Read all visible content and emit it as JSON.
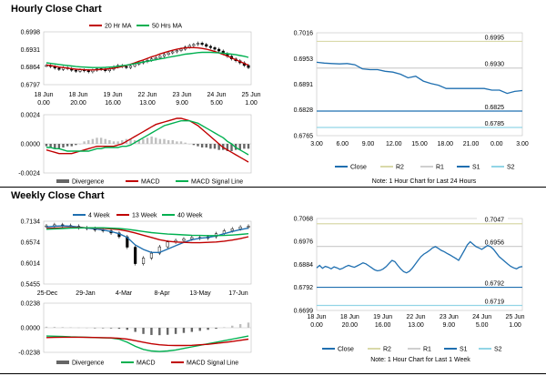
{
  "sections": {
    "hourly_title": "Hourly Close Chart",
    "weekly_title": "Weekly Close Chart"
  },
  "colors": {
    "ma_red": "#c00000",
    "ma_green": "#00b050",
    "series_blue": "#1f6fb0",
    "r2_line": "#d9d9a9",
    "r1_line": "#cfcfcf",
    "s2_line": "#92d5e6",
    "hist_grey": "#666666",
    "hist_light": "#bfbfbf"
  },
  "chart_data": [
    {
      "id": "hourly-candle",
      "type": "candlestick",
      "legend": [
        "20 Hr MA",
        "50 Hrs MA"
      ],
      "y_ticks": [
        "0.6998",
        "0.6931",
        "0.6864",
        "0.6797"
      ],
      "ylim": [
        0.6797,
        0.6998
      ],
      "x_ticks": [
        [
          "18 Jun",
          "0.00"
        ],
        [
          "18 Jun",
          "20.00"
        ],
        [
          "19 Jun",
          "16.00"
        ],
        [
          "22 Jun",
          "13.00"
        ],
        [
          "23 Jun",
          "9.00"
        ],
        [
          "24 Jun",
          "5.00"
        ],
        [
          "25 Jun",
          "1.00"
        ]
      ],
      "closes": [
        0.687,
        0.6866,
        0.686,
        0.6855,
        0.6862,
        0.6858,
        0.6852,
        0.6848,
        0.6853,
        0.685,
        0.6846,
        0.6852,
        0.6858,
        0.6855,
        0.685,
        0.6856,
        0.6865,
        0.687,
        0.6866,
        0.6862,
        0.6868,
        0.6875,
        0.688,
        0.6885,
        0.689,
        0.6895,
        0.69,
        0.6905,
        0.6912,
        0.6918,
        0.6922,
        0.6927,
        0.6932,
        0.694,
        0.6946,
        0.695,
        0.6955,
        0.695,
        0.6943,
        0.6938,
        0.6932,
        0.6925,
        0.6915,
        0.6905,
        0.6895,
        0.6888,
        0.688,
        0.687,
        0.6862
      ],
      "ma20": [
        0.6872,
        0.687,
        0.6867,
        0.6864,
        0.6862,
        0.686,
        0.6858,
        0.6856,
        0.6855,
        0.6854,
        0.6853,
        0.6853,
        0.6854,
        0.6855,
        0.6856,
        0.6858,
        0.686,
        0.6863,
        0.6866,
        0.687,
        0.6875,
        0.688,
        0.6886,
        0.6891,
        0.6897,
        0.6903,
        0.6908,
        0.6914,
        0.6919,
        0.6924,
        0.6928,
        0.6932,
        0.6935,
        0.6937,
        0.6938,
        0.6938,
        0.6937,
        0.6935,
        0.6932,
        0.6928,
        0.6923,
        0.6918,
        0.6912,
        0.6906,
        0.6899,
        0.6892,
        0.6885,
        0.6878,
        0.6871
      ],
      "ma50": [
        0.688,
        0.6878,
        0.6876,
        0.6874,
        0.6872,
        0.687,
        0.6868,
        0.6866,
        0.6865,
        0.6864,
        0.6863,
        0.6862,
        0.6862,
        0.6862,
        0.6863,
        0.6864,
        0.6865,
        0.6867,
        0.6869,
        0.6871,
        0.6874,
        0.6877,
        0.688,
        0.6883,
        0.6886,
        0.6889,
        0.6892,
        0.6895,
        0.6898,
        0.6901,
        0.6904,
        0.6907,
        0.691,
        0.6913,
        0.6915,
        0.6917,
        0.6919,
        0.692,
        0.692,
        0.692,
        0.6919,
        0.6918,
        0.6917,
        0.6915,
        0.6913,
        0.6911,
        0.6908,
        0.6905,
        0.6901
      ]
    },
    {
      "id": "hourly-macd",
      "type": "bar",
      "legend": [
        "Divergence",
        "MACD",
        "MACD Signal Line"
      ],
      "y_ticks": [
        "0.0024",
        "0.0000",
        "-0.0024"
      ],
      "ylim": [
        -0.0024,
        0.0024
      ],
      "divergence": [
        -0.0002,
        -0.0003,
        -0.0004,
        -0.0004,
        -0.0003,
        -0.0002,
        -0.0002,
        -0.0001,
        0.0,
        0.0002,
        0.0003,
        0.0004,
        0.0005,
        0.0005,
        0.0004,
        0.0003,
        0.0002,
        0.0002,
        0.0003,
        0.0004,
        0.0004,
        0.0003,
        0.0003,
        0.0004,
        0.0005,
        0.0006,
        0.0005,
        0.0004,
        0.0004,
        0.0003,
        0.0003,
        0.0002,
        0.0002,
        0.0001,
        0.0,
        -0.0001,
        -0.0002,
        -0.0003,
        -0.0003,
        -0.0004,
        -0.0004,
        -0.0005,
        -0.0005,
        -0.0006,
        -0.0006,
        -0.0005,
        -0.0005,
        -0.0004,
        -0.0004
      ],
      "macd": [
        -0.0005,
        -0.0006,
        -0.0007,
        -0.0008,
        -0.0008,
        -0.0008,
        -0.0008,
        -0.0007,
        -0.0006,
        -0.0005,
        -0.0004,
        -0.0003,
        -0.0002,
        -0.0002,
        -0.0002,
        -0.0002,
        -0.0002,
        -0.0001,
        0.0,
        0.0002,
        0.0004,
        0.0006,
        0.0008,
        0.001,
        0.0012,
        0.0014,
        0.0016,
        0.0017,
        0.0018,
        0.0019,
        0.002,
        0.0021,
        0.0021,
        0.002,
        0.0019,
        0.0017,
        0.0015,
        0.0012,
        0.0009,
        0.0006,
        0.0003,
        0.0,
        -0.0003,
        -0.0005,
        -0.0007,
        -0.0009,
        -0.0011,
        -0.0013,
        -0.0015
      ],
      "signal": [
        -0.0003,
        -0.0003,
        -0.0004,
        -0.0004,
        -0.0005,
        -0.0006,
        -0.0006,
        -0.0006,
        -0.0006,
        -0.0006,
        -0.0006,
        -0.0005,
        -0.0004,
        -0.0004,
        -0.0003,
        -0.0003,
        -0.0003,
        -0.0003,
        -0.0002,
        -0.0002,
        -0.0001,
        0.0001,
        0.0003,
        0.0005,
        0.0007,
        0.0009,
        0.0011,
        0.0013,
        0.0015,
        0.0016,
        0.0017,
        0.0018,
        0.0019,
        0.0019,
        0.0019,
        0.0018,
        0.0017,
        0.0015,
        0.0013,
        0.0011,
        0.0009,
        0.0007,
        0.0005,
        0.0002,
        0.0,
        -0.0003,
        -0.0005,
        -0.0007,
        -0.0009
      ]
    },
    {
      "id": "hourly-line",
      "type": "line",
      "legend": [
        "Close",
        "R2",
        "R1",
        "S1",
        "S2"
      ],
      "y_ticks": [
        "0.7016",
        "0.6953",
        "0.6891",
        "0.6828",
        "0.6765"
      ],
      "ylim": [
        0.6765,
        0.7016
      ],
      "x_ticks": [
        "3.00",
        "6.00",
        "9.00",
        "12.00",
        "15.00",
        "18.00",
        "21.00",
        "0.00",
        "3.00"
      ],
      "close": [
        0.6944,
        0.6942,
        0.6941,
        0.694,
        0.6941,
        0.6938,
        0.6928,
        0.6926,
        0.6926,
        0.6922,
        0.692,
        0.6915,
        0.6906,
        0.691,
        0.6898,
        0.6892,
        0.6888,
        0.688,
        0.688,
        0.688,
        0.688,
        0.688,
        0.688,
        0.6876,
        0.6876,
        0.6868,
        0.6873,
        0.6875
      ],
      "levels": [
        {
          "name": "R2",
          "value": 0.6995,
          "label": "0.6995"
        },
        {
          "name": "R1",
          "value": 0.693,
          "label": "0.6930"
        },
        {
          "name": "S1",
          "value": 0.6825,
          "label": "0.6825"
        },
        {
          "name": "S2",
          "value": 0.6785,
          "label": "0.6785"
        }
      ],
      "note": "Note: 1 Hour Chart for Last 24 Hours"
    },
    {
      "id": "weekly-candle",
      "type": "candlestick",
      "legend": [
        "4 Week",
        "13 Week",
        "40 Week"
      ],
      "y_ticks": [
        "0.7134",
        "0.6574",
        "0.6014",
        "0.5455"
      ],
      "ylim": [
        0.5455,
        0.7134
      ],
      "x_ticks": [
        "25-Dec",
        "29-Jan",
        "4-Mar",
        "8-Apr",
        "13-May",
        "17-Jun"
      ],
      "closes": [
        0.701,
        0.704,
        0.702,
        0.7,
        0.696,
        0.694,
        0.69,
        0.688,
        0.682,
        0.672,
        0.644,
        0.6,
        0.615,
        0.628,
        0.645,
        0.658,
        0.662,
        0.666,
        0.67,
        0.668,
        0.672,
        0.68,
        0.688,
        0.693,
        0.698,
        0.7
      ],
      "wk4": [
        0.698,
        0.7,
        0.701,
        0.7,
        0.698,
        0.695,
        0.693,
        0.69,
        0.686,
        0.68,
        0.67,
        0.65,
        0.638,
        0.63,
        0.63,
        0.639,
        0.648,
        0.657,
        0.664,
        0.668,
        0.67,
        0.674,
        0.68,
        0.686,
        0.691,
        0.695
      ],
      "wk13": [
        0.694,
        0.695,
        0.696,
        0.6965,
        0.6965,
        0.696,
        0.6955,
        0.6945,
        0.693,
        0.691,
        0.687,
        0.682,
        0.676,
        0.67,
        0.664,
        0.66,
        0.658,
        0.657,
        0.656,
        0.656,
        0.657,
        0.658,
        0.66,
        0.663,
        0.667,
        0.672
      ],
      "wk40": [
        0.692,
        0.693,
        0.694,
        0.695,
        0.6955,
        0.696,
        0.696,
        0.6958,
        0.695,
        0.694,
        0.692,
        0.689,
        0.686,
        0.683,
        0.681,
        0.679,
        0.678,
        0.677,
        0.676,
        0.6755,
        0.675,
        0.675,
        0.6755,
        0.6765,
        0.678,
        0.68
      ]
    },
    {
      "id": "weekly-macd",
      "type": "bar",
      "legend": [
        "Divergence",
        "MACD",
        "MACD Signal Line"
      ],
      "y_ticks": [
        "0.0238",
        "0.0000",
        "-0.0238"
      ],
      "ylim": [
        -0.0238,
        0.0238
      ],
      "divergence": [
        0.001,
        0.0008,
        0.0006,
        0.0004,
        0.0002,
        0.0,
        -0.0002,
        -0.0004,
        -0.0006,
        -0.001,
        -0.002,
        -0.004,
        -0.006,
        -0.007,
        -0.0072,
        -0.0068,
        -0.006,
        -0.005,
        -0.004,
        -0.003,
        -0.002,
        -0.001,
        0.0005,
        0.002,
        0.0035,
        0.005
      ],
      "macd": [
        -0.008,
        -0.0082,
        -0.0085,
        -0.0088,
        -0.009,
        -0.0092,
        -0.0095,
        -0.0098,
        -0.01,
        -0.011,
        -0.014,
        -0.018,
        -0.021,
        -0.0225,
        -0.023,
        -0.0225,
        -0.0215,
        -0.02,
        -0.0185,
        -0.017,
        -0.0155,
        -0.014,
        -0.0125,
        -0.011,
        -0.0095,
        -0.008
      ],
      "signal": [
        -0.0095,
        -0.0093,
        -0.0092,
        -0.0092,
        -0.0092,
        -0.0093,
        -0.0094,
        -0.0096,
        -0.0098,
        -0.0102,
        -0.011,
        -0.0125,
        -0.014,
        -0.0155,
        -0.0165,
        -0.017,
        -0.0172,
        -0.0172,
        -0.017,
        -0.0165,
        -0.016,
        -0.0152,
        -0.0143,
        -0.0133,
        -0.0122,
        -0.011
      ]
    },
    {
      "id": "weekly-line",
      "type": "line",
      "legend": [
        "Close",
        "R2",
        "R1",
        "S1",
        "S2"
      ],
      "y_ticks": [
        "0.7068",
        "0.6976",
        "0.6884",
        "0.6792",
        "0.6699"
      ],
      "ylim": [
        0.6699,
        0.7068
      ],
      "x_ticks": [
        [
          "18 Jun",
          "0.00"
        ],
        [
          "18 Jun",
          "20.00"
        ],
        [
          "19 Jun",
          "16.00"
        ],
        [
          "22 Jun",
          "13.00"
        ],
        [
          "23 Jun",
          "9.00"
        ],
        [
          "24 Jun",
          "5.00"
        ],
        [
          "25 Jun",
          "1.00"
        ]
      ],
      "close": [
        0.687,
        0.688,
        0.6868,
        0.6876,
        0.6872,
        0.6866,
        0.6874,
        0.687,
        0.6864,
        0.6868,
        0.6875,
        0.688,
        0.6876,
        0.6872,
        0.6878,
        0.6884,
        0.689,
        0.6886,
        0.6878,
        0.687,
        0.6862,
        0.6858,
        0.686,
        0.6866,
        0.6875,
        0.6888,
        0.69,
        0.6895,
        0.688,
        0.6866,
        0.6855,
        0.685,
        0.6856,
        0.6868,
        0.6884,
        0.69,
        0.6915,
        0.6925,
        0.6932,
        0.694,
        0.695,
        0.6955,
        0.6948,
        0.694,
        0.6935,
        0.6928,
        0.6922,
        0.6915,
        0.6908,
        0.69,
        0.692,
        0.694,
        0.6962,
        0.6975,
        0.6965,
        0.6955,
        0.695,
        0.6944,
        0.6952,
        0.696,
        0.6955,
        0.6945,
        0.693,
        0.6915,
        0.6905,
        0.6895,
        0.6885,
        0.6876,
        0.687,
        0.6866,
        0.6873,
        0.6875
      ],
      "levels": [
        {
          "name": "R2",
          "value": 0.7047,
          "label": "0.7047"
        },
        {
          "name": "R1",
          "value": 0.6956,
          "label": "0.6956"
        },
        {
          "name": "S1",
          "value": 0.6792,
          "label": "0.6792"
        },
        {
          "name": "S2",
          "value": 0.6719,
          "label": "0.6719"
        }
      ],
      "note": "Note: 1 Hour Chart for Last 1 Week"
    }
  ]
}
